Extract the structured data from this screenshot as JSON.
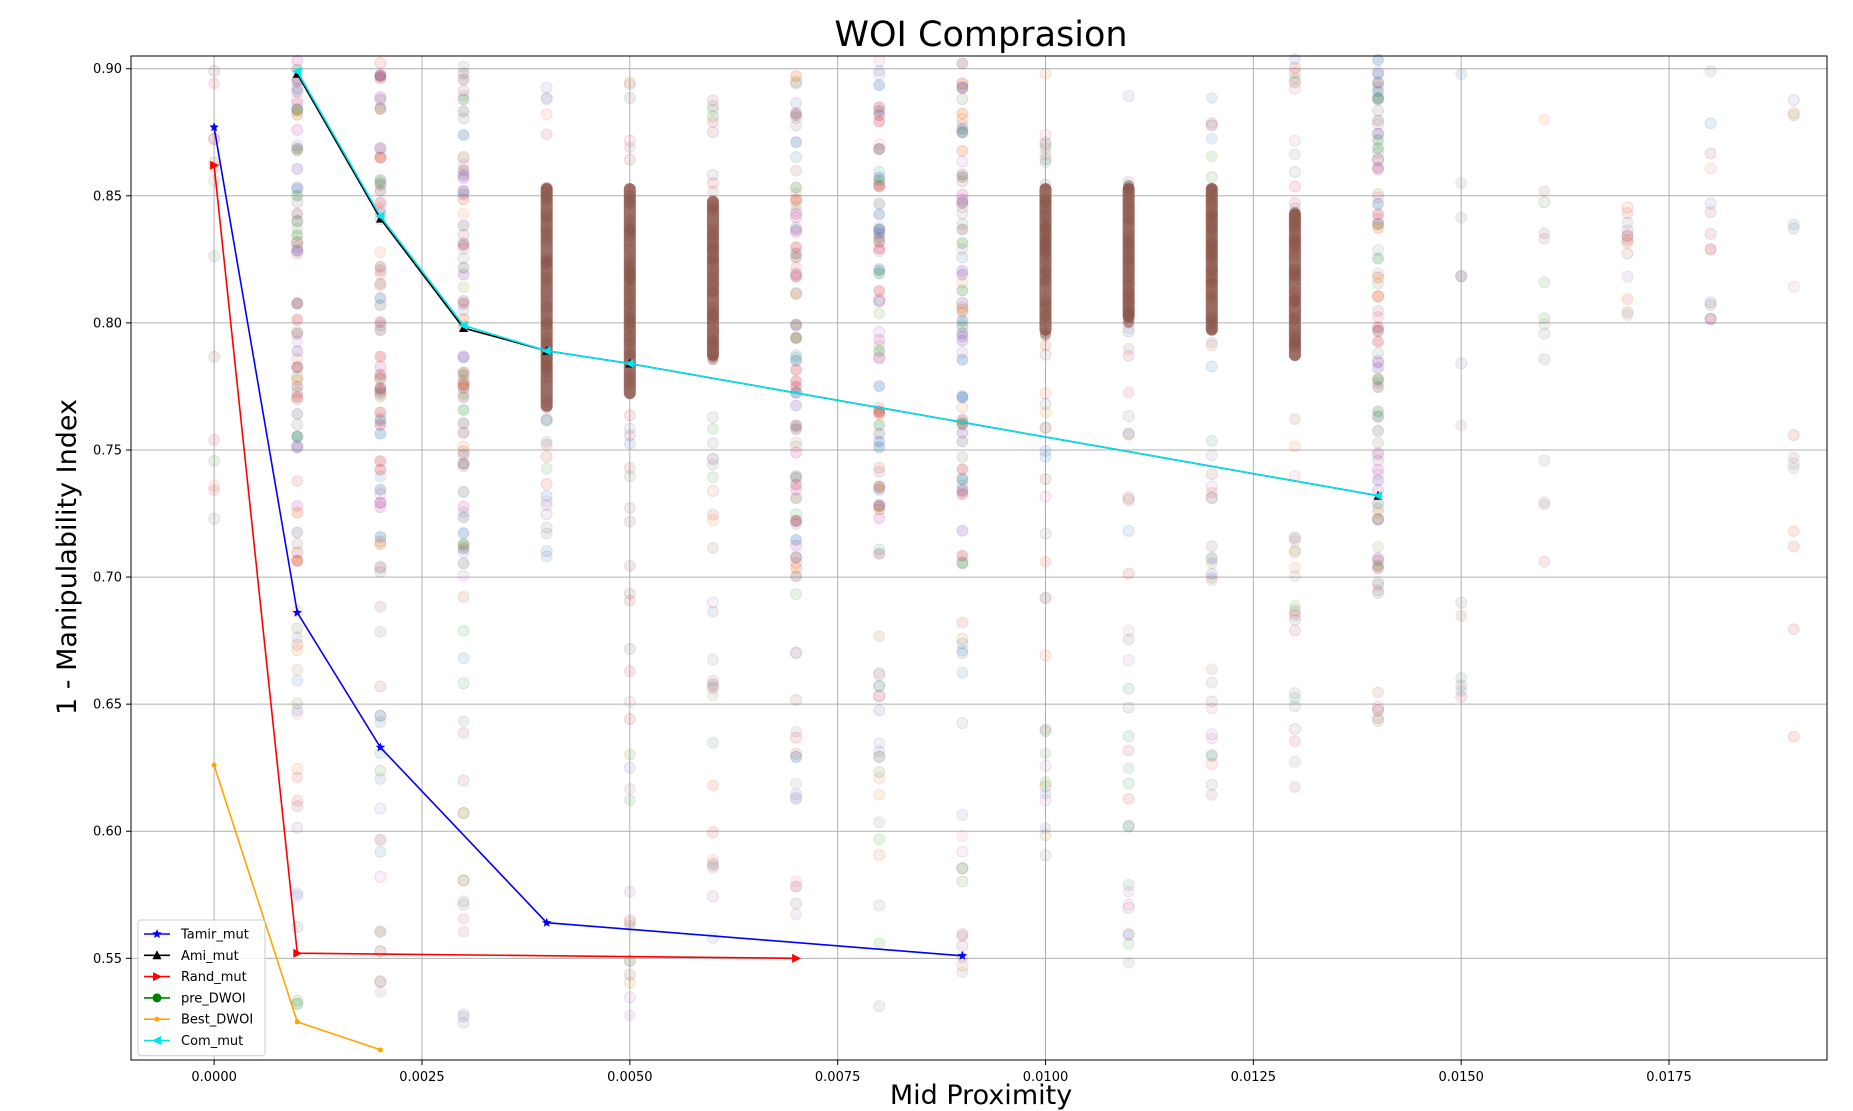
{
  "chart_data": {
    "type": "line",
    "title": "WOI Comprasion",
    "xlabel": "Mid Proximity",
    "ylabel": "1 - Manipulability Index",
    "xlim": [
      -0.001,
      0.0194
    ],
    "ylim": [
      0.51,
      0.905
    ],
    "grid": true,
    "legend_position": "lower-left",
    "x_ticks": [
      0.0,
      0.0025,
      0.005,
      0.0075,
      0.01,
      0.0125,
      0.015,
      0.0175
    ],
    "x_tick_labels": [
      "0.0000",
      "0.0025",
      "0.0050",
      "0.0075",
      "0.0100",
      "0.0125",
      "0.0150",
      "0.0175"
    ],
    "y_ticks": [
      0.55,
      0.6,
      0.65,
      0.7,
      0.75,
      0.8,
      0.85,
      0.9
    ],
    "y_tick_labels": [
      "0.55",
      "0.60",
      "0.65",
      "0.70",
      "0.75",
      "0.80",
      "0.85",
      "0.90"
    ],
    "series": [
      {
        "name": "Tamir_mut",
        "color": "#0000ff",
        "marker": "star",
        "x": [
          0.0,
          0.001,
          0.002,
          0.004,
          0.009
        ],
        "y": [
          0.877,
          0.686,
          0.633,
          0.564,
          0.551
        ]
      },
      {
        "name": "Ami_mut",
        "color": "#000000",
        "marker": "triangle-up",
        "x": [
          0.001,
          0.002,
          0.003,
          0.004,
          0.005,
          0.014
        ],
        "y": [
          0.898,
          0.841,
          0.798,
          0.789,
          0.784,
          0.732
        ]
      },
      {
        "name": "Rand_mut",
        "color": "#ff0000",
        "marker": "triangle-right",
        "x": [
          0.0,
          0.001,
          0.007
        ],
        "y": [
          0.862,
          0.552,
          0.55
        ]
      },
      {
        "name": "pre_DWOI",
        "color": "#008000",
        "marker": "circle",
        "x": [],
        "y": []
      },
      {
        "name": "Best_DWOI",
        "color": "#ffa500",
        "marker": "dot",
        "x": [
          0.0,
          0.001,
          0.002
        ],
        "y": [
          0.626,
          0.525,
          0.514
        ]
      },
      {
        "name": "Com_mut",
        "color": "#00e5ee",
        "marker": "triangle-left",
        "x": [
          0.001,
          0.002,
          0.003,
          0.004,
          0.005,
          0.014
        ],
        "y": [
          0.899,
          0.842,
          0.799,
          0.789,
          0.784,
          0.732
        ]
      }
    ],
    "background_scatter": {
      "description": "faint population markers of all mutations",
      "colors": [
        "#1f77b4",
        "#ff7f0e",
        "#2ca02c",
        "#d62728",
        "#9467bd",
        "#8c564b",
        "#e377c2",
        "#7f7f7f"
      ],
      "columns": [
        {
          "x": 0.0,
          "y_min": 0.686,
          "y_max": 0.9,
          "sparse": true
        },
        {
          "x": 0.001,
          "y_min": 0.53,
          "y_max": 0.905,
          "sparse": false
        },
        {
          "x": 0.002,
          "y_min": 0.52,
          "y_max": 0.905,
          "sparse": false
        },
        {
          "x": 0.003,
          "y_min": 0.52,
          "y_max": 0.905,
          "sparse": false
        },
        {
          "x": 0.004,
          "y_min": 0.708,
          "y_max": 0.905,
          "dense_min": 0.765,
          "dense_max": 0.855
        },
        {
          "x": 0.005,
          "y_min": 0.52,
          "y_max": 0.905,
          "dense_min": 0.77,
          "dense_max": 0.855
        },
        {
          "x": 0.006,
          "y_min": 0.557,
          "y_max": 0.905,
          "dense_min": 0.785,
          "dense_max": 0.85
        },
        {
          "x": 0.007,
          "y_min": 0.566,
          "y_max": 0.905,
          "sparse": false
        },
        {
          "x": 0.008,
          "y_min": 0.53,
          "y_max": 0.905,
          "sparse": false
        },
        {
          "x": 0.009,
          "y_min": 0.544,
          "y_max": 0.905,
          "sparse": false
        },
        {
          "x": 0.01,
          "y_min": 0.585,
          "y_max": 0.905,
          "dense_min": 0.795,
          "dense_max": 0.855
        },
        {
          "x": 0.011,
          "y_min": 0.539,
          "y_max": 0.89,
          "dense_min": 0.8,
          "dense_max": 0.855
        },
        {
          "x": 0.012,
          "y_min": 0.605,
          "y_max": 0.892,
          "dense_min": 0.795,
          "dense_max": 0.855
        },
        {
          "x": 0.013,
          "y_min": 0.615,
          "y_max": 0.905,
          "dense_min": 0.785,
          "dense_max": 0.845
        },
        {
          "x": 0.014,
          "y_min": 0.618,
          "y_max": 0.905,
          "sparse": false
        },
        {
          "x": 0.015,
          "y_min": 0.651,
          "y_max": 0.905,
          "sparse": true
        },
        {
          "x": 0.016,
          "y_min": 0.691,
          "y_max": 0.88,
          "sparse": true
        },
        {
          "x": 0.017,
          "y_min": 0.797,
          "y_max": 0.859,
          "sparse": true
        },
        {
          "x": 0.018,
          "y_min": 0.801,
          "y_max": 0.905,
          "sparse": true
        },
        {
          "x": 0.019,
          "y_min": 0.612,
          "y_max": 0.889,
          "sparse": true
        }
      ]
    }
  }
}
